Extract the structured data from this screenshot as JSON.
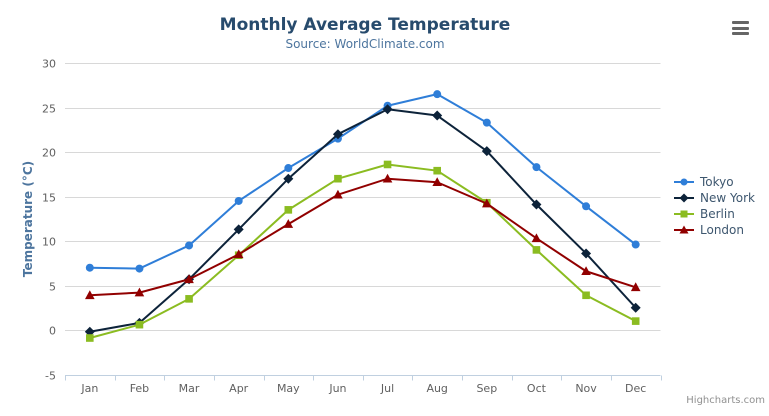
{
  "chart": {
    "credits": "Highcharts.com",
    "export_menu": "hamburger-menu"
  },
  "chart_data": {
    "type": "line",
    "title": "Monthly Average Temperature",
    "subtitle": "Source: WorldClimate.com",
    "categories": [
      "Jan",
      "Feb",
      "Mar",
      "Apr",
      "May",
      "Jun",
      "Jul",
      "Aug",
      "Sep",
      "Oct",
      "Nov",
      "Dec"
    ],
    "xlabel": "",
    "ylabel": "Temperature (°C)",
    "ylim": [
      -5,
      30
    ],
    "ytick_step": 5,
    "grid": true,
    "legend_position": "right",
    "axis_label_color": "#606060",
    "grid_color": "#d8d8d8",
    "axis_line_color": "#c0d0e0",
    "series": [
      {
        "name": "Tokyo",
        "color": "#2f7ed8",
        "marker": "circle",
        "values": [
          7.0,
          6.9,
          9.5,
          14.5,
          18.2,
          21.5,
          25.2,
          26.5,
          23.3,
          18.3,
          13.9,
          9.6
        ]
      },
      {
        "name": "New York",
        "color": "#0d233a",
        "marker": "diamond",
        "values": [
          -0.2,
          0.8,
          5.7,
          11.3,
          17.0,
          22.0,
          24.8,
          24.1,
          20.1,
          14.1,
          8.6,
          2.5
        ]
      },
      {
        "name": "Berlin",
        "color": "#8bbc21",
        "marker": "square",
        "values": [
          -0.9,
          0.6,
          3.5,
          8.4,
          13.5,
          17.0,
          18.6,
          17.9,
          14.3,
          9.0,
          3.9,
          1.0
        ]
      },
      {
        "name": "London",
        "color": "#910000",
        "marker": "triangle",
        "values": [
          3.9,
          4.2,
          5.7,
          8.5,
          11.9,
          15.2,
          17.0,
          16.6,
          14.2,
          10.3,
          6.6,
          4.8
        ]
      }
    ]
  }
}
